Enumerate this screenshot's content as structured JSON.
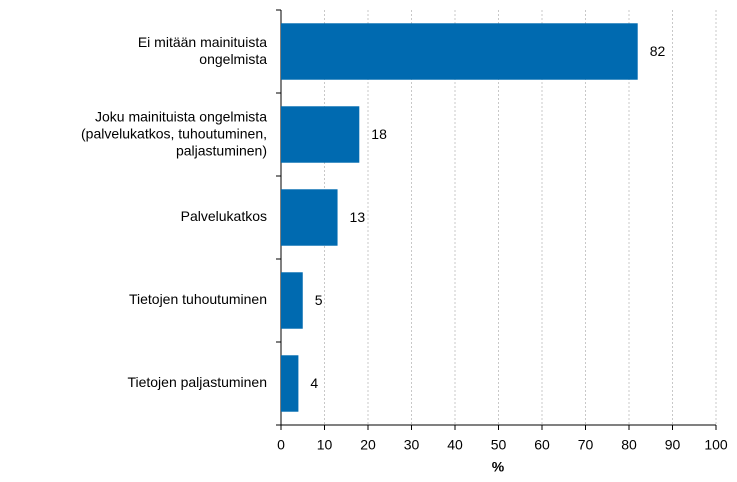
{
  "chart_data": {
    "type": "bar",
    "orientation": "horizontal",
    "categories": [
      "Ei mitään mainituista\nongelmista",
      "Joku mainituista ongelmista\n(palvelukatkos, tuhoutuminen,\npaljastuminen)",
      "Palvelukatkos",
      "Tietojen tuhoutuminen",
      "Tietojen paljastuminen"
    ],
    "values": [
      82,
      18,
      13,
      5,
      4
    ],
    "color": "#006ab0",
    "xlabel": "%",
    "xlim": [
      0,
      100
    ],
    "xticks": [
      0,
      10,
      20,
      30,
      40,
      50,
      60,
      70,
      80,
      90,
      100
    ],
    "grid": true
  }
}
